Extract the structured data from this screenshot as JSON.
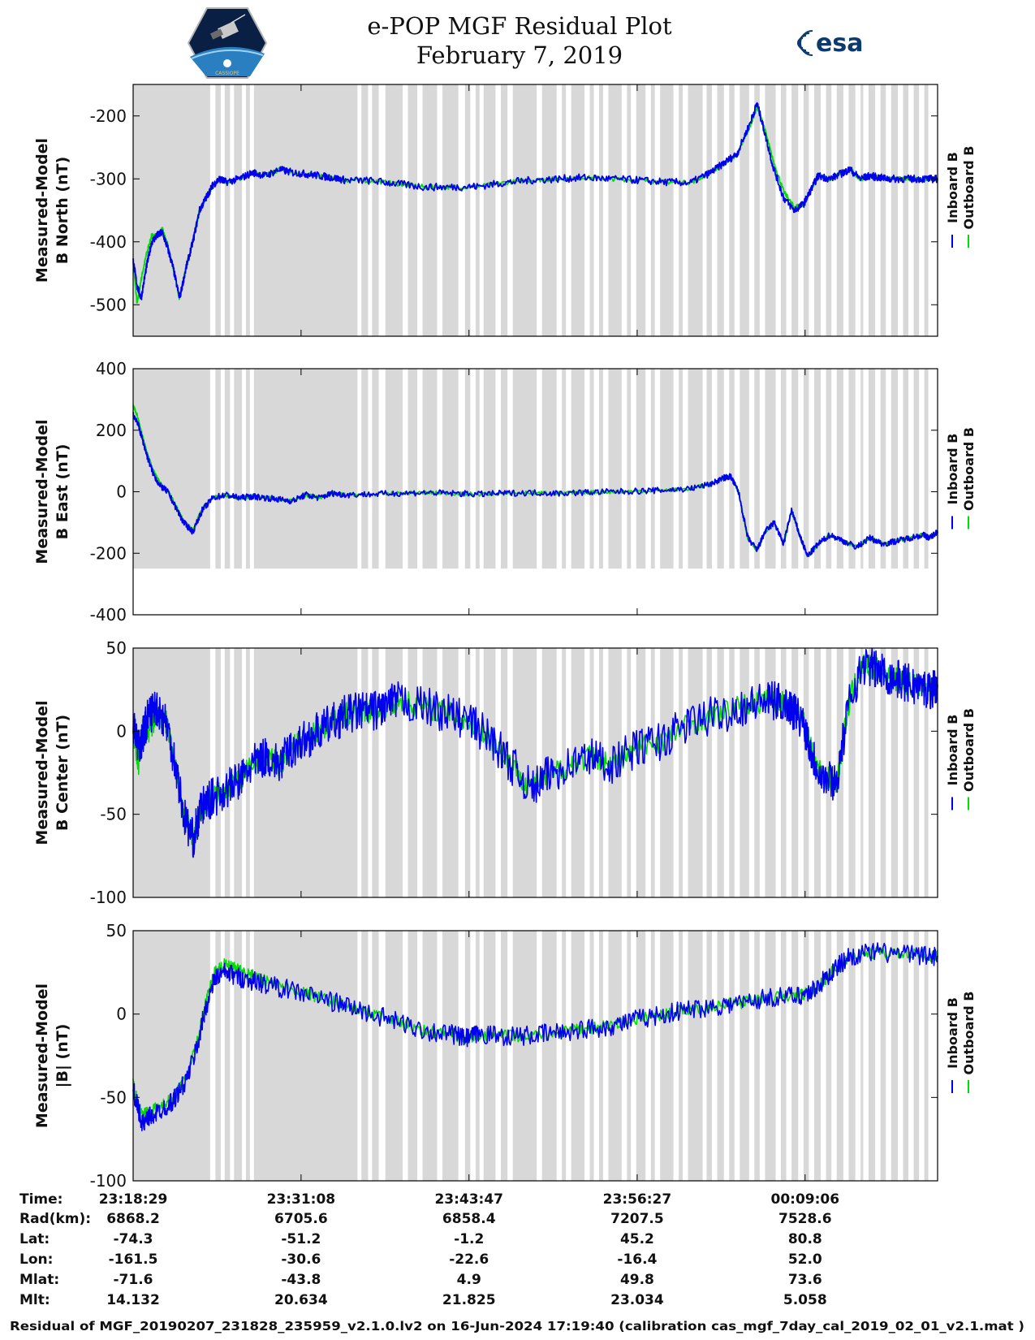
{
  "header": {
    "title_line1": "e-POP MGF Residual Plot",
    "title_line2": "February 7, 2019",
    "logo_left_text": "CASSIOPE",
    "logo_right_text": "esa"
  },
  "colors": {
    "inboard": "#0000ee",
    "outboard": "#00dd00",
    "shading": "#d8d8d8"
  },
  "legend": {
    "inboard": "Inboard B",
    "outboard": "Outboard B"
  },
  "chart_data": [
    {
      "type": "line",
      "ylabel": [
        "Measured-Model",
        "B North (nT)"
      ],
      "ylim": [
        -550,
        -150
      ],
      "yticks": [
        -200,
        -300,
        -400,
        -500
      ],
      "yticklabels": [
        "-200",
        "-300",
        "-400",
        "-500"
      ],
      "x_minutes": [
        0,
        0.3,
        0.6,
        1.0,
        1.4,
        1.8,
        2.2,
        2.6,
        3.0,
        3.5,
        4.0,
        4.5,
        5.0,
        5.5,
        6.0,
        6.5,
        7.0,
        8.0,
        9.0,
        10.0,
        11.0,
        12.0,
        13.0,
        14.0,
        15.0,
        16.0,
        18.0,
        20.0,
        22.0,
        24.0,
        26.0,
        28.0,
        30.0,
        32.0,
        34.0,
        36.0,
        38.0,
        40.0,
        42.0,
        43.5,
        44.5,
        45.5,
        46.5,
        47.0,
        47.5,
        48.2,
        49.0,
        49.8,
        50.5,
        51.0,
        51.6,
        52.5,
        53.5,
        54.0,
        54.8,
        55.5,
        56.2,
        57.0,
        58.0,
        59.0,
        60.0,
        60.6
      ],
      "series": [
        {
          "name": "Inboard B",
          "values": [
            -430,
            -470,
            -490,
            -440,
            -400,
            -390,
            -385,
            -410,
            -440,
            -490,
            -440,
            -400,
            -350,
            -330,
            -310,
            -300,
            -305,
            -300,
            -290,
            -295,
            -285,
            -290,
            -292,
            -295,
            -298,
            -302,
            -303,
            -308,
            -313,
            -313,
            -312,
            -306,
            -302,
            -300,
            -298,
            -300,
            -302,
            -305,
            -306,
            -290,
            -275,
            -260,
            -210,
            -180,
            -220,
            -280,
            -330,
            -350,
            -340,
            -320,
            -295,
            -300,
            -290,
            -285,
            -300,
            -295,
            -298,
            -300,
            -300,
            -300,
            -300,
            -300
          ]
        },
        {
          "name": "Outboard B",
          "values": [
            -430,
            -500,
            -460,
            -420,
            -390,
            -390,
            -380,
            -405,
            -440,
            -490,
            -440,
            -400,
            -350,
            -330,
            -310,
            -300,
            -305,
            -300,
            -290,
            -295,
            -285,
            -290,
            -292,
            -295,
            -298,
            -302,
            -303,
            -308,
            -313,
            -313,
            -312,
            -306,
            -302,
            -300,
            -298,
            -300,
            -302,
            -305,
            -306,
            -290,
            -275,
            -262,
            -215,
            -185,
            -215,
            -270,
            -320,
            -345,
            -340,
            -320,
            -295,
            -300,
            -290,
            -285,
            -300,
            -295,
            -298,
            -300,
            -300,
            -300,
            -300,
            -300
          ]
        }
      ]
    },
    {
      "type": "line",
      "ylabel": [
        "Measured-Model",
        "B East (nT)"
      ],
      "ylim": [
        -400,
        400
      ],
      "yticks": [
        400,
        200,
        0,
        -200,
        -400
      ],
      "yticklabels": [
        "400",
        "200",
        "0",
        "-200",
        "-400"
      ],
      "x_minutes": [
        0,
        0.3,
        0.7,
        1.1,
        1.5,
        2.0,
        2.6,
        3.2,
        3.8,
        4.5,
        5.2,
        6.0,
        7.0,
        8.0,
        9.0,
        10.0,
        11.0,
        12.0,
        13.0,
        14.0,
        15.0,
        16.0,
        18.0,
        20.0,
        22.0,
        24.0,
        26.0,
        28.0,
        30.0,
        32.0,
        34.0,
        36.0,
        38.0,
        40.0,
        42.0,
        43.5,
        44.5,
        45.0,
        45.6,
        46.3,
        47.0,
        47.6,
        48.3,
        49.0,
        49.6,
        50.2,
        50.8,
        51.6,
        52.5,
        53.5,
        54.5,
        55.5,
        56.5,
        57.5,
        58.5,
        59.5,
        60.0,
        60.6
      ],
      "series": [
        {
          "name": "Inboard B",
          "values": [
            250,
            230,
            170,
            110,
            60,
            20,
            0,
            -50,
            -100,
            -130,
            -60,
            -20,
            -10,
            -20,
            -15,
            -20,
            -25,
            -30,
            -10,
            -20,
            -5,
            -10,
            -8,
            -5,
            -3,
            -5,
            -8,
            -5,
            -3,
            -5,
            -2,
            0,
            2,
            5,
            10,
            25,
            45,
            50,
            0,
            -150,
            -190,
            -130,
            -100,
            -170,
            -60,
            -140,
            -210,
            -170,
            -140,
            -160,
            -180,
            -150,
            -170,
            -160,
            -150,
            -140,
            -150,
            -130
          ]
        },
        {
          "name": "Outboard B",
          "values": [
            280,
            250,
            180,
            120,
            70,
            30,
            5,
            -45,
            -95,
            -125,
            -55,
            -20,
            -10,
            -20,
            -15,
            -20,
            -25,
            -30,
            -10,
            -20,
            -5,
            -10,
            -8,
            -5,
            -3,
            -5,
            -8,
            -5,
            -3,
            -5,
            -2,
            0,
            2,
            5,
            10,
            25,
            45,
            50,
            0,
            -150,
            -190,
            -130,
            -100,
            -170,
            -60,
            -140,
            -210,
            -170,
            -140,
            -160,
            -180,
            -150,
            -170,
            -160,
            -150,
            -140,
            -150,
            -130
          ]
        }
      ]
    },
    {
      "type": "line",
      "ylabel": [
        "Measured-Model",
        "B Center (nT)"
      ],
      "ylim": [
        -100,
        50
      ],
      "yticks": [
        50,
        0,
        -50,
        -100
      ],
      "yticklabels": [
        "50",
        "0",
        "-50",
        "-100"
      ],
      "x_minutes": [
        0,
        0.4,
        0.8,
        1.2,
        1.8,
        2.5,
        3.2,
        3.8,
        4.5,
        5.2,
        6.0,
        7.0,
        8.0,
        9.0,
        10.0,
        11.0,
        12.0,
        13.0,
        14.0,
        15.0,
        16.0,
        17.0,
        18.0,
        19.0,
        20.0,
        22.0,
        24.0,
        25.5,
        27.0,
        28.5,
        30.0,
        31.5,
        33.0,
        34.5,
        36.0,
        38.0,
        40.0,
        42.0,
        44.0,
        46.0,
        47.5,
        48.5,
        49.5,
        50.5,
        51.2,
        52.0,
        53.0,
        54.0,
        55.0,
        56.0,
        57.0,
        58.0,
        59.0,
        60.0,
        60.6
      ],
      "series": [
        {
          "name": "Inboard B",
          "values": [
            5,
            -10,
            0,
            10,
            15,
            5,
            -20,
            -50,
            -65,
            -45,
            -40,
            -35,
            -30,
            -20,
            -15,
            -20,
            -10,
            -5,
            0,
            5,
            10,
            12,
            12,
            15,
            18,
            15,
            10,
            5,
            -5,
            -20,
            -35,
            -25,
            -20,
            -15,
            -20,
            -10,
            -5,
            5,
            10,
            15,
            18,
            18,
            15,
            5,
            -15,
            -28,
            -30,
            20,
            40,
            37,
            33,
            30,
            27,
            25,
            28
          ]
        },
        {
          "name": "Outboard B",
          "values": [
            0,
            -20,
            5,
            0,
            10,
            5,
            -20,
            -50,
            -65,
            -45,
            -40,
            -35,
            -30,
            -20,
            -15,
            -20,
            -10,
            -5,
            0,
            5,
            10,
            12,
            12,
            15,
            18,
            15,
            10,
            5,
            -5,
            -20,
            -35,
            -25,
            -20,
            -15,
            -20,
            -10,
            -5,
            5,
            10,
            15,
            18,
            18,
            15,
            5,
            -15,
            -28,
            -30,
            20,
            40,
            37,
            33,
            30,
            27,
            25,
            28
          ]
        }
      ]
    },
    {
      "type": "line",
      "ylabel": [
        "Measured-Model",
        "|B| (nT)"
      ],
      "ylim": [
        -100,
        50
      ],
      "yticks": [
        50,
        0,
        -50,
        -100
      ],
      "yticklabels": [
        "50",
        "0",
        "-50",
        "-100"
      ],
      "x_minutes": [
        0,
        0.4,
        0.8,
        1.2,
        2.0,
        3.0,
        4.0,
        4.8,
        5.5,
        6.2,
        7.0,
        8.0,
        9.0,
        10.0,
        12.0,
        14.0,
        16.0,
        18.0,
        20.0,
        22.0,
        24.0,
        25.0,
        26.0,
        28.0,
        30.0,
        32.0,
        34.0,
        36.0,
        38.0,
        40.0,
        42.0,
        44.0,
        46.0,
        48.0,
        50.0,
        51.0,
        52.0,
        53.0,
        54.0,
        56.0,
        58.0,
        60.0,
        60.6
      ],
      "series": [
        {
          "name": "Inboard B",
          "values": [
            -45,
            -58,
            -67,
            -62,
            -58,
            -52,
            -40,
            -20,
            5,
            22,
            25,
            22,
            20,
            18,
            14,
            10,
            5,
            0,
            -5,
            -10,
            -12,
            -15,
            -12,
            -13,
            -13,
            -11,
            -9,
            -7,
            -3,
            0,
            3,
            5,
            7,
            10,
            11,
            13,
            20,
            28,
            35,
            37,
            36,
            35,
            35
          ]
        },
        {
          "name": "Outboard B",
          "values": [
            -42,
            -55,
            -60,
            -58,
            -56,
            -50,
            -38,
            -18,
            8,
            27,
            30,
            26,
            23,
            20,
            15,
            10,
            5,
            0,
            -5,
            -10,
            -12,
            -15,
            -12,
            -13,
            -13,
            -11,
            -9,
            -7,
            -3,
            0,
            3,
            5,
            7,
            10,
            11,
            13,
            20,
            28,
            35,
            37,
            36,
            35,
            35
          ]
        }
      ]
    }
  ],
  "info_table": {
    "row_labels": [
      "Time:",
      "Rad(km):",
      "Lat:",
      "Lon:",
      "Mlat:",
      "Mlt:"
    ],
    "columns": [
      [
        "23:18:29",
        "6868.2",
        "-74.3",
        "-161.5",
        "-71.6",
        "14.132"
      ],
      [
        "23:31:08",
        "6705.6",
        "-51.2",
        "-30.6",
        "-43.8",
        "20.634"
      ],
      [
        "23:43:47",
        "6858.4",
        "-1.2",
        "-22.6",
        "4.9",
        "21.825"
      ],
      [
        "23:56:27",
        "7207.5",
        "45.2",
        "-16.4",
        "49.8",
        "23.034"
      ],
      [
        "00:09:06",
        "7528.6",
        "80.8",
        "52.0",
        "73.6",
        "5.058"
      ]
    ]
  },
  "footer": "Residual of MGF_20190207_231828_235959_v2.1.0.lv2 on 16-Jun-2024 17:19:40 (calibration cas_mgf_7day_cal_2019_02_01_v2.1.mat )"
}
